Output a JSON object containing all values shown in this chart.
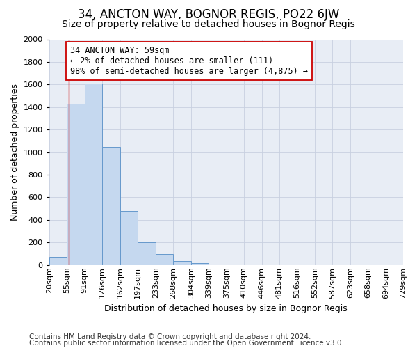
{
  "title": "34, ANCTON WAY, BOGNOR REGIS, PO22 6JW",
  "subtitle": "Size of property relative to detached houses in Bognor Regis",
  "xlabel": "Distribution of detached houses by size in Bognor Regis",
  "ylabel": "Number of detached properties",
  "footnote1": "Contains HM Land Registry data © Crown copyright and database right 2024.",
  "footnote2": "Contains public sector information licensed under the Open Government Licence v3.0.",
  "annotation_line1": "34 ANCTON WAY: 59sqm",
  "annotation_line2": "← 2% of detached houses are smaller (111)",
  "annotation_line3": "98% of semi-detached houses are larger (4,875) →",
  "bar_color": "#c5d8ef",
  "bar_edge_color": "#6699cc",
  "vline_color": "#cc0000",
  "vline_x": 59,
  "bins": [
    20,
    55,
    91,
    126,
    162,
    197,
    233,
    268,
    304,
    339,
    375,
    410,
    446,
    481,
    516,
    552,
    587,
    623,
    658,
    694,
    729
  ],
  "counts": [
    75,
    1430,
    1610,
    1050,
    480,
    200,
    100,
    35,
    20,
    0,
    0,
    0,
    0,
    0,
    0,
    0,
    0,
    0,
    0,
    0
  ],
  "ylim": [
    0,
    2000
  ],
  "yticks": [
    0,
    200,
    400,
    600,
    800,
    1000,
    1200,
    1400,
    1600,
    1800,
    2000
  ],
  "background_color": "#e8edf5",
  "grid_color": "#c8d0e0",
  "title_fontsize": 12,
  "subtitle_fontsize": 10,
  "xlabel_fontsize": 9,
  "ylabel_fontsize": 9,
  "tick_fontsize": 8,
  "annot_fontsize": 8.5,
  "footnote_fontsize": 7.5
}
